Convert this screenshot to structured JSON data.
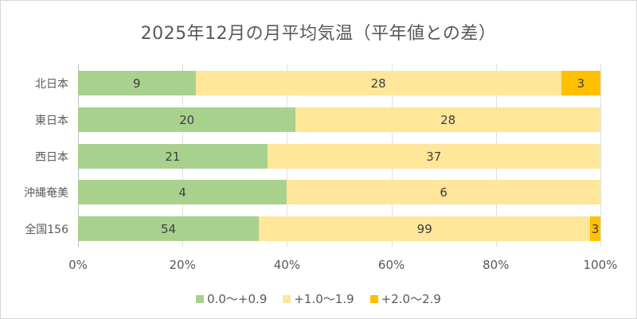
{
  "chart_data": {
    "type": "bar",
    "orientation": "horizontal",
    "stacked": "percent",
    "title": "2025年12月の月平均気温（平年値との差）",
    "xlabel": "",
    "ylabel": "",
    "categories": [
      "北日本",
      "東日本",
      "西日本",
      "沖縄奄美",
      "全国156"
    ],
    "series": [
      {
        "name": "0.0～+0.9",
        "color": "#a9d18e",
        "values": [
          9,
          20,
          21,
          4,
          54
        ]
      },
      {
        "name": "+1.0～1.9",
        "color": "#ffe699",
        "values": [
          28,
          28,
          37,
          6,
          99
        ]
      },
      {
        "name": "+2.0～2.9",
        "color": "#ffc000",
        "values": [
          3,
          0,
          0,
          0,
          3
        ]
      }
    ],
    "xticks": [
      "0%",
      "20%",
      "40%",
      "60%",
      "80%",
      "100%"
    ],
    "xlim": [
      0,
      100
    ],
    "grid": true,
    "legend_position": "bottom"
  },
  "labels": {
    "title": "2025年12月の月平均気温（平年値との差）",
    "categories": [
      "北日本",
      "東日本",
      "西日本",
      "沖縄奄美",
      "全国156"
    ],
    "xticks": [
      "0%",
      "20%",
      "40%",
      "60%",
      "80%",
      "100%"
    ],
    "legend": [
      "0.0～+0.9",
      "+1.0～1.9",
      "+2.0～2.9"
    ]
  }
}
